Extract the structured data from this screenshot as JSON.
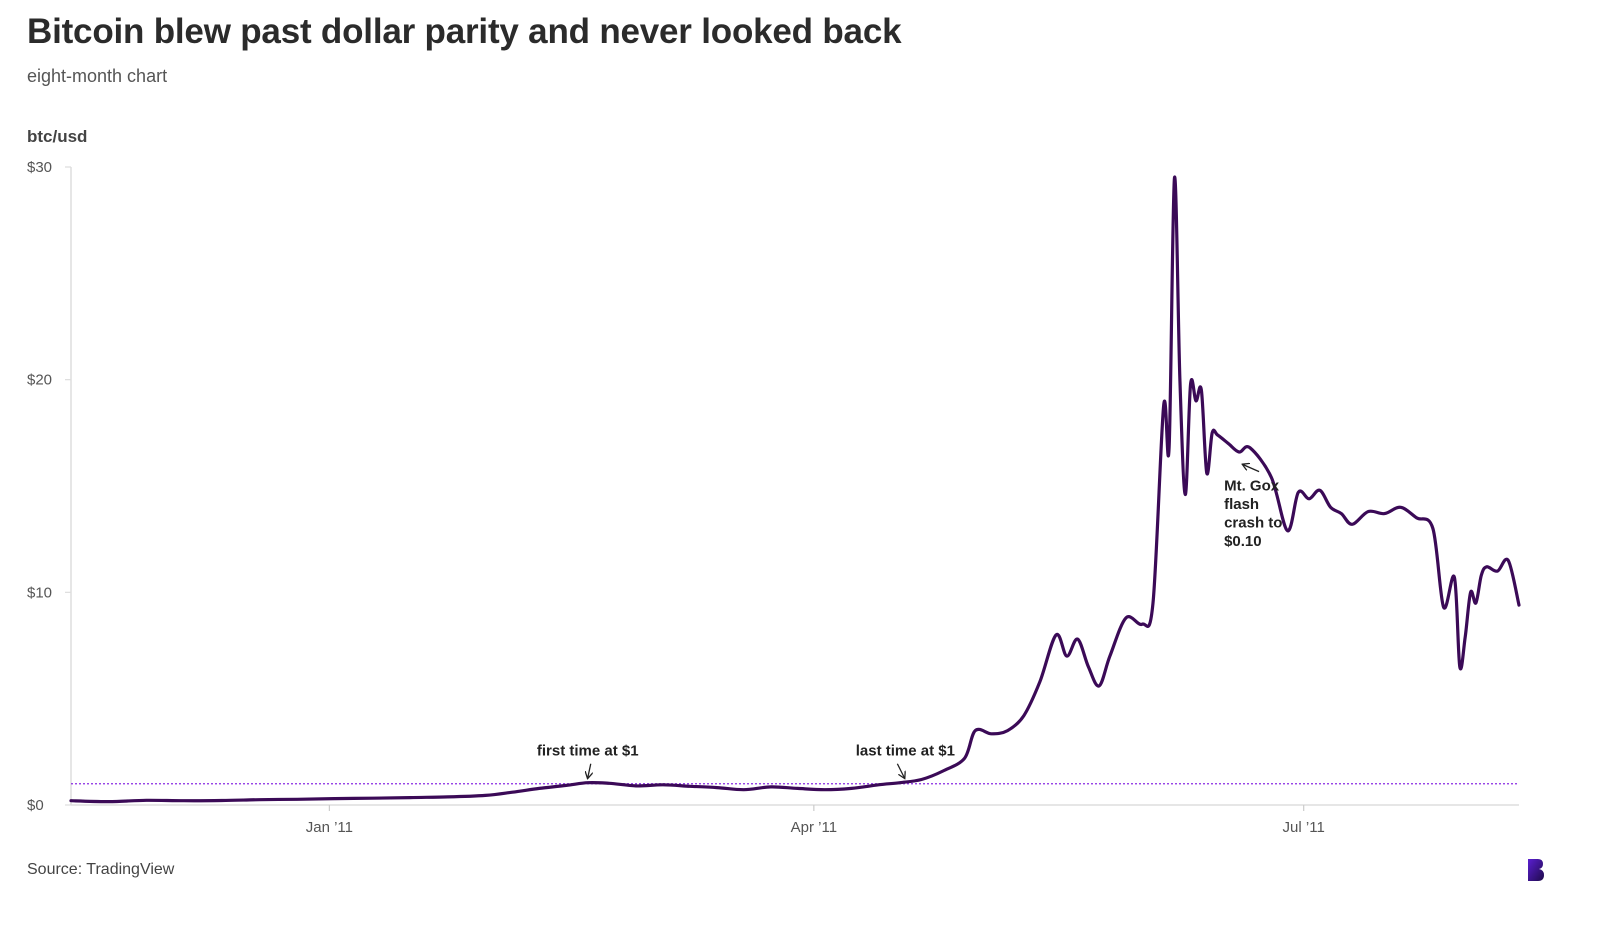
{
  "header": {
    "title": "Bitcoin blew past dollar parity and never looked back",
    "subtitle": "eight-month chart"
  },
  "footer": {
    "source": "Source: TradingView"
  },
  "colors": {
    "line": "#3b0a57",
    "reference": "#8a2be2",
    "axis": "#dddddd"
  },
  "chart_data": {
    "type": "line",
    "title": "Bitcoin blew past dollar parity and never looked back",
    "subtitle": "eight-month chart",
    "ylabel": "btc/usd",
    "ylim": [
      0,
      30
    ],
    "xlim": [
      "2010-11-14",
      "2011-08-10"
    ],
    "y_ticks": [
      {
        "value": 0,
        "label": "$0"
      },
      {
        "value": 10,
        "label": "$10"
      },
      {
        "value": 20,
        "label": "$20"
      },
      {
        "value": 30,
        "label": "$30"
      }
    ],
    "x_ticks": [
      {
        "date": "2011-01-01",
        "label": "Jan ’11"
      },
      {
        "date": "2011-04-01",
        "label": "Apr ’11"
      },
      {
        "date": "2011-07-01",
        "label": "Jul ’11"
      }
    ],
    "reference_line": {
      "value": 1,
      "style": "dotted"
    },
    "grid": false,
    "legend": "none",
    "series": [
      {
        "x": [
          "2010-11-14",
          "2010-11-21",
          "2010-11-28",
          "2010-12-05",
          "2010-12-12",
          "2010-12-19",
          "2010-12-26",
          "2011-01-02",
          "2011-01-09",
          "2011-01-16",
          "2011-01-23",
          "2011-01-30",
          "2011-02-04",
          "2011-02-09",
          "2011-02-14",
          "2011-02-18",
          "2011-02-22",
          "2011-02-27",
          "2011-03-04",
          "2011-03-09",
          "2011-03-14",
          "2011-03-19",
          "2011-03-24",
          "2011-03-29",
          "2011-04-03",
          "2011-04-08",
          "2011-04-13",
          "2011-04-17",
          "2011-04-21",
          "2011-04-25",
          "2011-04-29",
          "2011-05-01",
          "2011-05-04",
          "2011-05-07",
          "2011-05-10",
          "2011-05-13",
          "2011-05-16",
          "2011-05-18",
          "2011-05-20",
          "2011-05-22",
          "2011-05-24",
          "2011-05-26",
          "2011-05-29",
          "2011-06-01",
          "2011-06-03",
          "2011-06-05",
          "2011-06-06",
          "2011-06-07",
          "2011-06-08",
          "2011-06-09",
          "2011-06-10",
          "2011-06-11",
          "2011-06-12",
          "2011-06-13",
          "2011-06-14",
          "2011-06-15",
          "2011-06-17",
          "2011-06-19",
          "2011-06-21",
          "2011-06-25",
          "2011-06-28",
          "2011-06-30",
          "2011-07-02",
          "2011-07-04",
          "2011-07-06",
          "2011-07-08",
          "2011-07-10",
          "2011-07-13",
          "2011-07-16",
          "2011-07-19",
          "2011-07-22",
          "2011-07-25",
          "2011-07-27",
          "2011-07-29",
          "2011-07-30",
          "2011-07-31",
          "2011-08-01",
          "2011-08-02",
          "2011-08-03",
          "2011-08-04",
          "2011-08-06",
          "2011-08-08",
          "2011-08-10"
        ],
        "y": [
          0.2,
          0.16,
          0.22,
          0.2,
          0.21,
          0.25,
          0.27,
          0.3,
          0.32,
          0.35,
          0.38,
          0.45,
          0.6,
          0.78,
          0.92,
          1.05,
          1.02,
          0.9,
          0.95,
          0.88,
          0.82,
          0.72,
          0.85,
          0.78,
          0.72,
          0.78,
          0.95,
          1.05,
          1.2,
          1.6,
          2.2,
          3.5,
          3.35,
          3.5,
          4.2,
          5.8,
          8.0,
          7.0,
          7.8,
          6.5,
          5.6,
          7.0,
          8.8,
          8.5,
          9.5,
          18.8,
          16.8,
          29.5,
          20.0,
          14.6,
          19.8,
          19.0,
          19.5,
          15.6,
          17.5,
          17.4,
          17.0,
          16.6,
          16.8,
          15.4,
          12.9,
          14.7,
          14.4,
          14.8,
          14.0,
          13.7,
          13.2,
          13.8,
          13.7,
          14.0,
          13.5,
          13.0,
          9.3,
          10.7,
          6.5,
          7.9,
          10.0,
          9.5,
          10.8,
          11.2,
          11.0,
          11.5,
          9.4
        ]
      }
    ],
    "annotations": [
      {
        "text": "first time at $1",
        "date": "2011-02-18",
        "value": 1
      },
      {
        "text": "last time at $1",
        "date": "2011-04-18",
        "value": 1
      },
      {
        "text": "Mt. Gox flash crash to $0.10",
        "lines": [
          "Mt. Gox",
          "flash",
          "crash to",
          "$0.10"
        ],
        "date": "2011-06-19",
        "value": 16.1
      }
    ]
  }
}
